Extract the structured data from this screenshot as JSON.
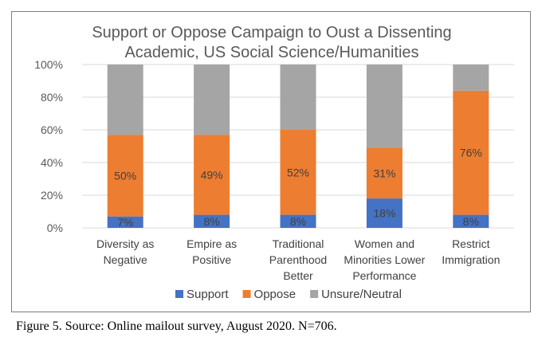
{
  "chart_data": {
    "type": "bar",
    "stacked": true,
    "title_lines": [
      "Support or Oppose Campaign to Oust a Dissenting",
      "Academic, US Social Science/Humanities"
    ],
    "categories": [
      [
        "Diversity as",
        "Negative"
      ],
      [
        "Empire as",
        "Positive"
      ],
      [
        "Traditional",
        "Parenthood",
        "Better"
      ],
      [
        "Women and",
        "Minorities Lower",
        "Performance"
      ],
      [
        "Restrict",
        "Immigration"
      ]
    ],
    "series": [
      {
        "name": "Support",
        "color": "#4472c4",
        "values": [
          7,
          8,
          8,
          18,
          8
        ],
        "labels": [
          "7%",
          "8%",
          "8%",
          "18%",
          "8%"
        ]
      },
      {
        "name": "Oppose",
        "color": "#ed7d31",
        "values": [
          50,
          49,
          52,
          31,
          76
        ],
        "labels": [
          "50%",
          "49%",
          "52%",
          "31%",
          "76%"
        ]
      },
      {
        "name": "Unsure/Neutral",
        "color": "#a5a5a5",
        "values": [
          43,
          43,
          40,
          51,
          16
        ],
        "labels": [
          "",
          "",
          "",
          "",
          ""
        ]
      }
    ],
    "yticks": [
      "0%",
      "20%",
      "40%",
      "60%",
      "80%",
      "100%"
    ],
    "ylim": [
      0,
      100
    ],
    "grid": true,
    "legend": "bottom"
  },
  "caption": "Figure 5. Source: Online mailout survey, August 2020. N=706."
}
